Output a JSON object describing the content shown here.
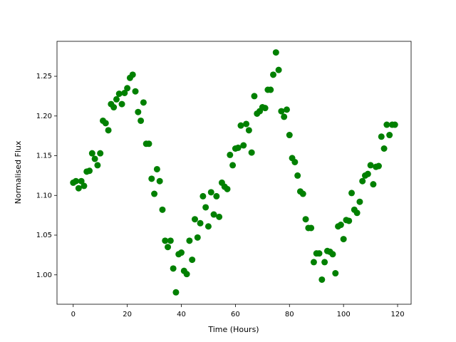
{
  "chart_data": {
    "type": "scatter",
    "xlabel": "Time (Hours)",
    "ylabel": "Normalised Flux",
    "color": "#008000",
    "xlim": [
      -6,
      125
    ],
    "ylim": [
      0.963,
      1.294
    ],
    "xticks": [
      0,
      20,
      40,
      60,
      80,
      100,
      120
    ],
    "yticks": [
      {
        "value": 1.0,
        "label": "1.00"
      },
      1.05,
      {
        "value": 1.1,
        "label": "1.10"
      },
      1.15,
      {
        "value": 1.2,
        "label": "1.20"
      },
      1.25
    ],
    "x": [
      0,
      1,
      2,
      3,
      4,
      5,
      6,
      7,
      8,
      9,
      10,
      11,
      12,
      13,
      14,
      15,
      16,
      17,
      18,
      19,
      20,
      21,
      22,
      23,
      24,
      25,
      26,
      27,
      28,
      29,
      30,
      31,
      32,
      33,
      34,
      35,
      36,
      37,
      38,
      39,
      40,
      41,
      42,
      43,
      44,
      45,
      46,
      47,
      48,
      49,
      50,
      51,
      52,
      53,
      54,
      55,
      56,
      57,
      58,
      59,
      60,
      61,
      62,
      63,
      64,
      65,
      66,
      67,
      68,
      69,
      70,
      71,
      72,
      73,
      74,
      75,
      76,
      77,
      78,
      79,
      80,
      81,
      82,
      83,
      84,
      85,
      86,
      87,
      88,
      89,
      90,
      91,
      92,
      93,
      94,
      95,
      96,
      97,
      98,
      99,
      100,
      101,
      102,
      103,
      104,
      105,
      106,
      107,
      108,
      109,
      110,
      111,
      112,
      113,
      114,
      115,
      116,
      117,
      118,
      119
    ],
    "values": [
      1.116,
      1.118,
      1.109,
      1.118,
      1.112,
      1.13,
      1.131,
      1.153,
      1.146,
      1.138,
      1.153,
      1.194,
      1.191,
      1.182,
      1.215,
      1.211,
      1.221,
      1.228,
      1.215,
      1.229,
      1.235,
      1.248,
      1.252,
      1.231,
      1.205,
      1.194,
      1.217,
      1.165,
      1.165,
      1.121,
      1.102,
      1.133,
      1.118,
      1.082,
      1.043,
      1.035,
      1.043,
      1.008,
      0.978,
      1.026,
      1.028,
      1.005,
      1.001,
      1.043,
      1.019,
      1.07,
      1.047,
      1.065,
      1.099,
      1.085,
      1.061,
      1.104,
      1.076,
      1.099,
      1.073,
      1.116,
      1.111,
      1.108,
      1.151,
      1.138,
      1.159,
      1.16,
      1.188,
      1.163,
      1.19,
      1.182,
      1.154,
      1.225,
      1.203,
      1.206,
      1.211,
      1.21,
      1.233,
      1.233,
      1.252,
      1.28,
      1.258,
      1.206,
      1.199,
      1.208,
      1.176,
      1.147,
      1.142,
      1.125,
      1.105,
      1.102,
      1.07,
      1.059,
      1.059,
      1.016,
      1.027,
      1.027,
      0.994,
      1.016,
      1.03,
      1.029,
      1.026,
      1.002,
      1.061,
      1.063,
      1.045,
      1.069,
      1.068,
      1.103,
      1.082,
      1.078,
      1.092,
      1.118,
      1.125,
      1.127,
      1.138,
      1.114,
      1.136,
      1.137,
      1.174,
      1.159,
      1.189,
      1.176,
      1.189,
      1.189
    ]
  }
}
